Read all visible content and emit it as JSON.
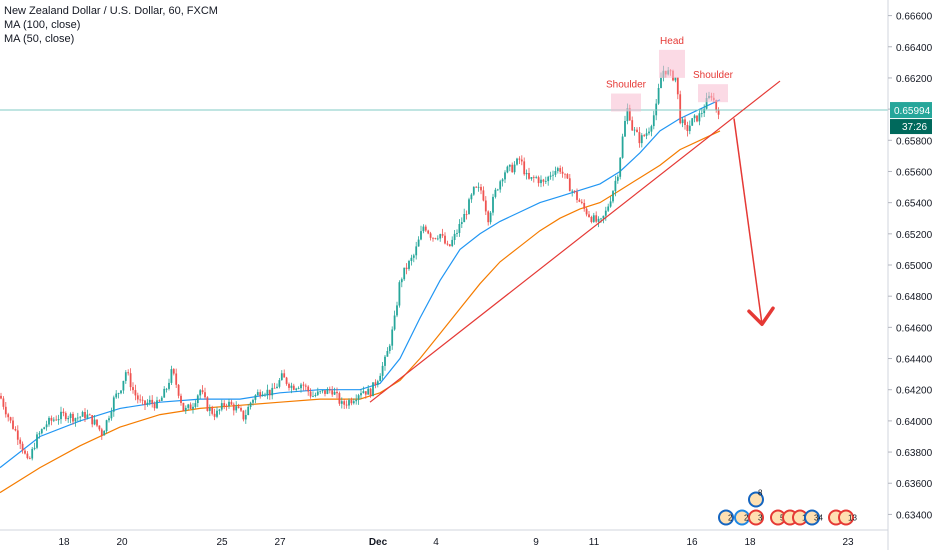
{
  "legend": {
    "title": "New Zealand Dollar / U.S. Dollar, 60, FXCM",
    "ma100": "MA (100, close)",
    "ma50": "MA (50, close)"
  },
  "colors": {
    "up": "#26a69a",
    "down": "#ef5350",
    "ma50": "#2196f3",
    "ma100": "#f57c00",
    "trendline": "#e53935",
    "price_line": "#80cbc4",
    "annotation": "#e53935",
    "price_label_bg": "#26a69a",
    "timer_label_bg": "#00695c"
  },
  "chart_data": {
    "type": "candlestick",
    "symbol": "NZDUSD",
    "timeframe": "60",
    "x_ticks": [
      "18",
      "20",
      "25",
      "27",
      "Dec",
      "4",
      "9",
      "11",
      "16",
      "18",
      "23"
    ],
    "y_ticks": [
      "0.63400",
      "0.63600",
      "0.63800",
      "0.64000",
      "0.64200",
      "0.64400",
      "0.64600",
      "0.64800",
      "0.65000",
      "0.65200",
      "0.65400",
      "0.65600",
      "0.65800",
      "0.66000",
      "0.66200",
      "0.66400",
      "0.66600"
    ],
    "ylim": [
      0.633,
      0.667
    ],
    "current_price": "0.65994",
    "countdown": "37:26",
    "price_path": [
      [
        0,
        0.6416
      ],
      [
        10,
        0.64
      ],
      [
        20,
        0.6388
      ],
      [
        28,
        0.6372
      ],
      [
        36,
        0.6388
      ],
      [
        46,
        0.6398
      ],
      [
        56,
        0.6402
      ],
      [
        66,
        0.6404
      ],
      [
        76,
        0.6402
      ],
      [
        86,
        0.6404
      ],
      [
        96,
        0.6398
      ],
      [
        102,
        0.6392
      ],
      [
        108,
        0.6402
      ],
      [
        114,
        0.6414
      ],
      [
        120,
        0.642
      ],
      [
        126,
        0.6432
      ],
      [
        134,
        0.6418
      ],
      [
        142,
        0.641
      ],
      [
        150,
        0.6412
      ],
      [
        158,
        0.641
      ],
      [
        166,
        0.642
      ],
      [
        172,
        0.6432
      ],
      [
        178,
        0.642
      ],
      [
        184,
        0.6406
      ],
      [
        192,
        0.641
      ],
      [
        200,
        0.642
      ],
      [
        208,
        0.6408
      ],
      [
        216,
        0.6404
      ],
      [
        226,
        0.6412
      ],
      [
        236,
        0.6408
      ],
      [
        244,
        0.6402
      ],
      [
        252,
        0.6414
      ],
      [
        262,
        0.642
      ],
      [
        272,
        0.6418
      ],
      [
        282,
        0.6428
      ],
      [
        292,
        0.6422
      ],
      [
        302,
        0.6424
      ],
      [
        312,
        0.6416
      ],
      [
        322,
        0.6418
      ],
      [
        332,
        0.642
      ],
      [
        342,
        0.641
      ],
      [
        352,
        0.6414
      ],
      [
        362,
        0.642
      ],
      [
        370,
        0.6418
      ],
      [
        378,
        0.6428
      ],
      [
        386,
        0.644
      ],
      [
        394,
        0.6462
      ],
      [
        400,
        0.649
      ],
      [
        406,
        0.6498
      ],
      [
        414,
        0.6506
      ],
      [
        424,
        0.6526
      ],
      [
        432,
        0.6518
      ],
      [
        440,
        0.652
      ],
      [
        448,
        0.651
      ],
      [
        456,
        0.652
      ],
      [
        466,
        0.6534
      ],
      [
        474,
        0.6548
      ],
      [
        482,
        0.6548
      ],
      [
        488,
        0.653
      ],
      [
        496,
        0.6548
      ],
      [
        504,
        0.656
      ],
      [
        512,
        0.6562
      ],
      [
        520,
        0.6568
      ],
      [
        528,
        0.6554
      ],
      [
        536,
        0.6556
      ],
      [
        544,
        0.6552
      ],
      [
        552,
        0.656
      ],
      [
        560,
        0.6562
      ],
      [
        568,
        0.6552
      ],
      [
        576,
        0.6544
      ],
      [
        584,
        0.6536
      ],
      [
        592,
        0.653
      ],
      [
        600,
        0.6526
      ],
      [
        606,
        0.6534
      ],
      [
        612,
        0.6546
      ],
      [
        618,
        0.656
      ],
      [
        624,
        0.6588
      ],
      [
        628,
        0.6602
      ],
      [
        632,
        0.6588
      ],
      [
        640,
        0.658
      ],
      [
        648,
        0.6586
      ],
      [
        656,
        0.66
      ],
      [
        660,
        0.6618
      ],
      [
        664,
        0.6626
      ],
      [
        670,
        0.6622
      ],
      [
        676,
        0.662
      ],
      [
        680,
        0.6594
      ],
      [
        686,
        0.6586
      ],
      [
        692,
        0.6592
      ],
      [
        700,
        0.6596
      ],
      [
        706,
        0.6604
      ],
      [
        712,
        0.661
      ],
      [
        716,
        0.66
      ],
      [
        720,
        0.6599
      ]
    ],
    "ma50_path": [
      [
        0,
        0.637
      ],
      [
        40,
        0.639
      ],
      [
        80,
        0.64
      ],
      [
        120,
        0.6408
      ],
      [
        160,
        0.6412
      ],
      [
        200,
        0.6414
      ],
      [
        240,
        0.6414
      ],
      [
        280,
        0.6418
      ],
      [
        320,
        0.642
      ],
      [
        360,
        0.642
      ],
      [
        380,
        0.6424
      ],
      [
        400,
        0.644
      ],
      [
        420,
        0.6466
      ],
      [
        440,
        0.649
      ],
      [
        460,
        0.651
      ],
      [
        480,
        0.652
      ],
      [
        500,
        0.6528
      ],
      [
        520,
        0.6534
      ],
      [
        540,
        0.654
      ],
      [
        560,
        0.6544
      ],
      [
        580,
        0.6548
      ],
      [
        600,
        0.6552
      ],
      [
        620,
        0.656
      ],
      [
        640,
        0.6572
      ],
      [
        660,
        0.6586
      ],
      [
        680,
        0.6594
      ],
      [
        700,
        0.66
      ],
      [
        720,
        0.6606
      ]
    ],
    "ma100_path": [
      [
        0,
        0.6354
      ],
      [
        40,
        0.637
      ],
      [
        80,
        0.6384
      ],
      [
        120,
        0.6396
      ],
      [
        160,
        0.6404
      ],
      [
        200,
        0.6408
      ],
      [
        240,
        0.641
      ],
      [
        280,
        0.6412
      ],
      [
        320,
        0.6414
      ],
      [
        360,
        0.6414
      ],
      [
        380,
        0.6418
      ],
      [
        400,
        0.6426
      ],
      [
        420,
        0.644
      ],
      [
        440,
        0.6456
      ],
      [
        460,
        0.6472
      ],
      [
        480,
        0.6488
      ],
      [
        500,
        0.6502
      ],
      [
        520,
        0.6512
      ],
      [
        540,
        0.6522
      ],
      [
        560,
        0.653
      ],
      [
        580,
        0.6536
      ],
      [
        600,
        0.654
      ],
      [
        620,
        0.6548
      ],
      [
        640,
        0.6556
      ],
      [
        660,
        0.6564
      ],
      [
        680,
        0.6574
      ],
      [
        700,
        0.658
      ],
      [
        720,
        0.6586
      ]
    ],
    "trendline": [
      [
        370,
        0.6412
      ],
      [
        780,
        0.6618
      ]
    ],
    "projection_arrow": [
      [
        734,
        0.6594
      ],
      [
        762,
        0.6462
      ]
    ],
    "annotations": [
      {
        "label": "Shoulder",
        "x": 626,
        "price": 0.661
      },
      {
        "label": "Head",
        "x": 672,
        "price": 0.6638
      },
      {
        "label": "Shoulder",
        "x": 713,
        "price": 0.6616
      }
    ],
    "events_row": {
      "y": 0.6338,
      "items": [
        {
          "x": 726,
          "count": "2"
        },
        {
          "x": 742,
          "count": "2"
        },
        {
          "x": 756,
          "count": "3"
        },
        {
          "x": 778,
          "count": "5"
        },
        {
          "x": 790,
          "count": "2"
        },
        {
          "x": 800,
          "count": "11"
        },
        {
          "x": 812,
          "count": "34"
        },
        {
          "x": 836,
          "count": "7"
        },
        {
          "x": 846,
          "count": "13"
        }
      ],
      "upper": {
        "x": 756,
        "count": "8"
      }
    }
  }
}
